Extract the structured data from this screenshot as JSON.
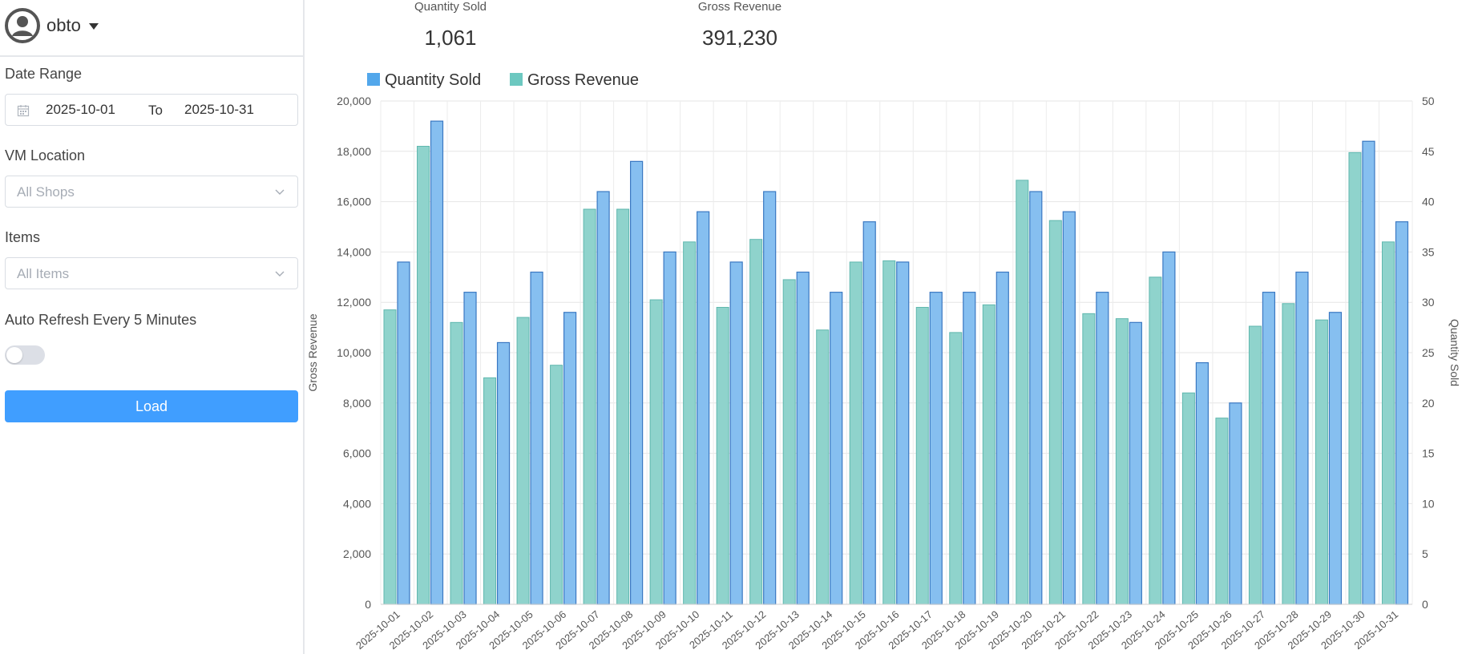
{
  "user": {
    "name": "obto"
  },
  "filters": {
    "date_range_label": "Date Range",
    "date_from": "2025-10-01",
    "to_label": "To",
    "date_to": "2025-10-31",
    "location_label": "VM Location",
    "location_placeholder": "All Shops",
    "items_label": "Items",
    "items_placeholder": "All Items",
    "auto_refresh_label": "Auto Refresh Every 5 Minutes",
    "auto_refresh_on": false,
    "load_label": "Load"
  },
  "stats": {
    "quantity_label": "Quantity Sold",
    "quantity_value": "1,061",
    "revenue_label": "Gross Revenue",
    "revenue_value": "391,230"
  },
  "colors": {
    "accent": "#409eff",
    "quantity_fill": "#86bff0",
    "quantity_stroke": "#3a78c2",
    "revenue_fill": "#8fd3cc",
    "revenue_stroke": "#5fb7ae"
  },
  "chart_data": {
    "type": "bar",
    "categories": [
      "2025-10-01",
      "2025-10-02",
      "2025-10-03",
      "2025-10-04",
      "2025-10-05",
      "2025-10-06",
      "2025-10-07",
      "2025-10-08",
      "2025-10-09",
      "2025-10-10",
      "2025-10-11",
      "2025-10-12",
      "2025-10-13",
      "2025-10-14",
      "2025-10-15",
      "2025-10-16",
      "2025-10-17",
      "2025-10-18",
      "2025-10-19",
      "2025-10-20",
      "2025-10-21",
      "2025-10-22",
      "2025-10-23",
      "2025-10-24",
      "2025-10-25",
      "2025-10-26",
      "2025-10-27",
      "2025-10-28",
      "2025-10-29",
      "2025-10-30",
      "2025-10-31"
    ],
    "series": [
      {
        "name": "Gross Revenue",
        "axis": "left",
        "values": [
          11700,
          18200,
          11200,
          9000,
          11400,
          9500,
          15700,
          15700,
          12100,
          14400,
          11800,
          14500,
          12900,
          10900,
          13600,
          13650,
          11800,
          10800,
          11900,
          16850,
          15250,
          11550,
          11350,
          13000,
          8400,
          7400,
          11050,
          11950,
          11300,
          17950,
          14400
        ]
      },
      {
        "name": "Quantity Sold",
        "axis": "right",
        "values": [
          34,
          48,
          31,
          26,
          33,
          29,
          41,
          44,
          35,
          39,
          34,
          41,
          33,
          31,
          38,
          34,
          31,
          31,
          33,
          41,
          39,
          31,
          28,
          35,
          24,
          20,
          31,
          33,
          29,
          46,
          38
        ]
      }
    ],
    "left_axis": {
      "label": "Gross Revenue",
      "min": 0,
      "max": 20000,
      "ticks": [
        "0",
        "2,000",
        "4,000",
        "6,000",
        "8,000",
        "10,000",
        "12,000",
        "14,000",
        "16,000",
        "18,000",
        "20,000"
      ]
    },
    "right_axis": {
      "label": "Quantity Sold",
      "min": 0,
      "max": 50,
      "ticks": [
        "0",
        "5",
        "10",
        "15",
        "20",
        "25",
        "30",
        "35",
        "40",
        "45",
        "50"
      ]
    },
    "legend": [
      "Quantity Sold",
      "Gross Revenue"
    ],
    "legend_position": "top-left",
    "grid": true
  }
}
